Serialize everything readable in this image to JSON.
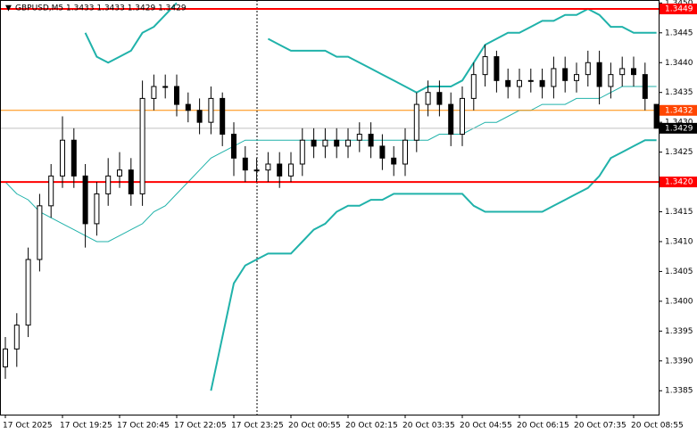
{
  "chart_data": {
    "type": "candlestick",
    "title": "GBPUSD,M5 1.3433 1.3433 1.3429 1.3429",
    "categories": [
      "17 Oct 2025",
      null,
      null,
      null,
      null,
      "17 Oct 19:25",
      null,
      null,
      null,
      null,
      "17 Oct 20:45",
      null,
      null,
      null,
      null,
      "17 Oct 22:05",
      null,
      null,
      null,
      null,
      "17 Oct 23:25",
      null,
      null,
      null,
      null,
      "20 Oct 00:55",
      null,
      null,
      null,
      null,
      "20 Oct 02:15",
      null,
      null,
      null,
      null,
      "20 Oct 03:35",
      null,
      null,
      null,
      null,
      "20 Oct 04:55",
      null,
      null,
      null,
      null,
      "20 Oct 06:15",
      null,
      null,
      null,
      null,
      "20 Oct 07:35",
      null,
      null,
      null,
      null,
      "20 Oct 08:55",
      null,
      null
    ],
    "open": [
      1.3389,
      1.3392,
      1.3396,
      1.3407,
      1.3416,
      1.3421,
      1.3427,
      1.3421,
      1.3413,
      1.3418,
      1.3421,
      1.3422,
      1.3418,
      1.3434,
      1.3436,
      1.3436,
      1.3433,
      1.3432,
      1.343,
      1.3434,
      1.3428,
      1.3424,
      1.3422,
      1.3422,
      1.3423,
      1.3421,
      1.3423,
      1.3427,
      1.3426,
      1.3427,
      1.3426,
      1.3427,
      1.3428,
      1.3426,
      1.3424,
      1.3423,
      1.3427,
      1.3433,
      1.3435,
      1.3433,
      1.3428,
      1.3434,
      1.3438,
      1.3441,
      1.3437,
      1.3436,
      1.3437,
      1.3437,
      1.3436,
      1.3439,
      1.3437,
      1.3438,
      1.344,
      1.3436,
      1.3438,
      1.3439,
      1.3438,
      1.3433
    ],
    "high": [
      1.3394,
      1.3398,
      1.3409,
      1.3418,
      1.3423,
      1.3431,
      1.3429,
      1.3423,
      1.342,
      1.3424,
      1.3425,
      1.3424,
      1.3437,
      1.3438,
      1.3438,
      1.3438,
      1.3435,
      1.3434,
      1.3436,
      1.3435,
      1.343,
      1.3426,
      1.3424,
      1.3425,
      1.3425,
      1.3425,
      1.3429,
      1.3429,
      1.3429,
      1.3429,
      1.3429,
      1.343,
      1.343,
      1.3428,
      1.3426,
      1.3429,
      1.3435,
      1.3437,
      1.3437,
      1.3435,
      1.3436,
      1.344,
      1.3443,
      1.3442,
      1.3439,
      1.3439,
      1.3439,
      1.3439,
      1.3441,
      1.3441,
      1.344,
      1.3442,
      1.3442,
      1.344,
      1.3441,
      1.3441,
      1.344,
      1.3433
    ],
    "low": [
      1.3387,
      1.3389,
      1.3394,
      1.3405,
      1.3414,
      1.3419,
      1.3419,
      1.3409,
      1.3411,
      1.3416,
      1.3419,
      1.3416,
      1.3416,
      1.3432,
      1.3434,
      1.3431,
      1.343,
      1.3428,
      1.3428,
      1.3426,
      1.3421,
      1.342,
      1.342,
      1.342,
      1.3419,
      1.342,
      1.3421,
      1.3424,
      1.3424,
      1.3424,
      1.3424,
      1.3425,
      1.3424,
      1.3422,
      1.3421,
      1.3421,
      1.3425,
      1.3431,
      1.3431,
      1.3426,
      1.3426,
      1.3432,
      1.3436,
      1.3435,
      1.3434,
      1.3434,
      1.3435,
      1.3434,
      1.3434,
      1.3435,
      1.3435,
      1.3436,
      1.3433,
      1.3434,
      1.3436,
      1.3436,
      1.3432,
      1.3429
    ],
    "close": [
      1.3392,
      1.3396,
      1.3407,
      1.3416,
      1.3421,
      1.3427,
      1.3421,
      1.3413,
      1.3418,
      1.3421,
      1.3422,
      1.3418,
      1.3434,
      1.3436,
      1.3436,
      1.3433,
      1.3432,
      1.343,
      1.3434,
      1.3428,
      1.3424,
      1.3422,
      1.3422,
      1.3423,
      1.3421,
      1.3423,
      1.3427,
      1.3426,
      1.3427,
      1.3426,
      1.3427,
      1.3428,
      1.3426,
      1.3424,
      1.3423,
      1.3427,
      1.3433,
      1.3435,
      1.3433,
      1.3428,
      1.3434,
      1.3438,
      1.3441,
      1.3437,
      1.3436,
      1.3437,
      1.3437,
      1.3436,
      1.3439,
      1.3437,
      1.3438,
      1.344,
      1.3436,
      1.3438,
      1.3439,
      1.3438,
      1.3434,
      1.3429
    ],
    "series": [
      {
        "color": "#20b2aa",
        "width": 2,
        "values": [
          null,
          null,
          null,
          null,
          null,
          null,
          null,
          1.3445,
          1.3441,
          1.344,
          1.3441,
          1.3442,
          1.3445,
          1.3446,
          1.3448,
          1.345,
          null,
          null,
          null,
          null,
          null,
          null,
          null,
          1.3444,
          1.3443,
          1.3442,
          1.3442,
          1.3442,
          1.3442,
          1.3441,
          1.3441,
          1.344,
          1.3439,
          1.3438,
          1.3437,
          1.3436,
          1.3435,
          1.3436,
          1.3436,
          1.3436,
          1.3437,
          1.344,
          1.3443,
          1.3444,
          1.3445,
          1.3445,
          1.3446,
          1.3447,
          1.3447,
          1.3448,
          1.3448,
          1.3449,
          1.3448,
          1.3446,
          1.3446,
          1.3445,
          1.3445,
          1.3445
        ]
      },
      {
        "color": "#20b2aa",
        "width": 1,
        "values": [
          1.342,
          1.3418,
          1.3417,
          1.3415,
          1.3414,
          1.3413,
          1.3412,
          1.3411,
          1.341,
          1.341,
          1.3411,
          1.3412,
          1.3413,
          1.3415,
          1.3416,
          1.3418,
          1.342,
          1.3422,
          1.3424,
          1.3425,
          1.3426,
          1.3427,
          1.3427,
          1.3427,
          1.3427,
          1.3427,
          1.3427,
          1.3427,
          1.3427,
          1.3427,
          1.3427,
          1.3427,
          1.3427,
          1.3427,
          1.3427,
          1.3427,
          1.3427,
          1.3427,
          1.3428,
          1.3428,
          1.3428,
          1.3429,
          1.343,
          1.343,
          1.3431,
          1.3432,
          1.3432,
          1.3433,
          1.3433,
          1.3433,
          1.3434,
          1.3434,
          1.3434,
          1.3435,
          1.3436,
          1.3436,
          1.3436,
          1.3436
        ]
      },
      {
        "color": "#20b2aa",
        "width": 2,
        "values": [
          null,
          null,
          null,
          null,
          null,
          null,
          null,
          null,
          null,
          null,
          null,
          null,
          null,
          null,
          null,
          null,
          null,
          null,
          1.3385,
          1.3394,
          1.3403,
          1.3406,
          1.3407,
          1.3408,
          1.3408,
          1.3408,
          1.341,
          1.3412,
          1.3413,
          1.3415,
          1.3416,
          1.3416,
          1.3417,
          1.3417,
          1.3418,
          1.3418,
          1.3418,
          1.3418,
          1.3418,
          1.3418,
          1.3418,
          1.3416,
          1.3415,
          1.3415,
          1.3415,
          1.3415,
          1.3415,
          1.3415,
          1.3416,
          1.3417,
          1.3418,
          1.3419,
          1.3421,
          1.3424,
          1.3425,
          1.3426,
          1.3427,
          1.3427
        ]
      }
    ],
    "levels": [
      {
        "value": 1.3449,
        "color": "#ff0000",
        "box": "#ff0000",
        "width": 2
      },
      {
        "value": 1.3432,
        "color": "#ff8c00",
        "box": "#ff4500",
        "width": 1
      },
      {
        "value": 1.3429,
        "color": "#c0c0c0",
        "box": "#000000",
        "width": 1
      },
      {
        "value": 1.342,
        "label": "1.3420",
        "color": "#ff0000",
        "box": "#ff0000",
        "width": 2
      }
    ],
    "ylim": [
      1.3381,
      1.34505
    ],
    "yticks": [
      {
        "value": 1.345,
        "label": "1.3450"
      },
      1.3445,
      {
        "value": 1.344,
        "label": "1.3440"
      },
      1.3435,
      {
        "value": 1.343,
        "label": "1.3430"
      },
      1.3425,
      {
        "value": 1.342,
        "label": "1.3420"
      },
      1.3415,
      {
        "value": 1.341,
        "label": "1.3410"
      },
      1.3405,
      {
        "value": 1.34,
        "label": "1.3400"
      },
      1.3395,
      {
        "value": 1.339,
        "label": "1.3390"
      },
      1.3385
    ]
  }
}
